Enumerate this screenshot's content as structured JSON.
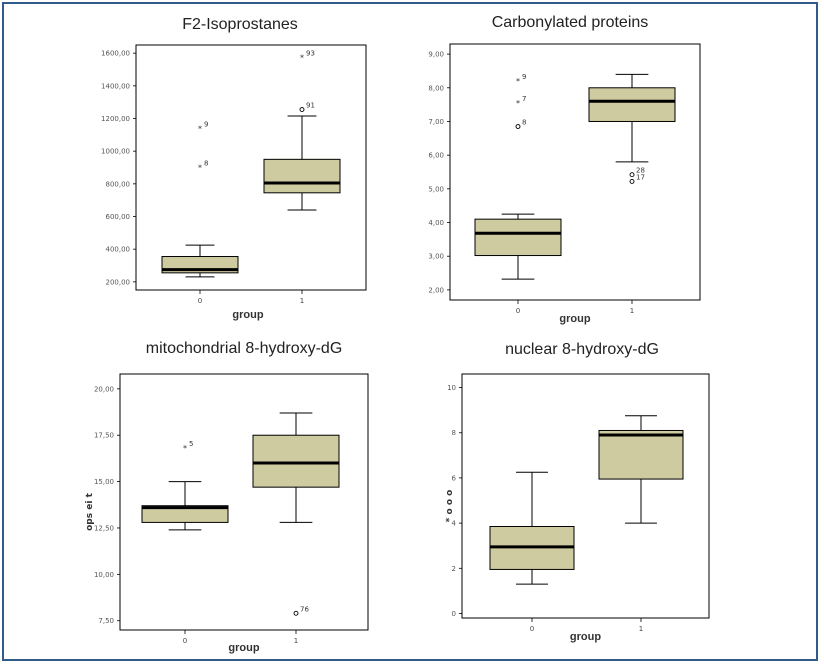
{
  "figure": {
    "border_color": "#2f5c8a",
    "box_fill": "#cfcba0",
    "median_color": "#000000"
  },
  "chart_data": [
    {
      "type": "box",
      "title": "F2-Isoprostanes",
      "xlabel": "group",
      "ylabel": "",
      "categories": [
        "0",
        "1"
      ],
      "ylim": [
        150,
        1650
      ],
      "yticks": [
        200,
        400,
        600,
        800,
        1000,
        1200,
        1400,
        1600
      ],
      "ytick_labels": [
        "200,00",
        "400,00",
        "600,00",
        "800,00",
        "1000,00",
        "1200,00",
        "1400,00",
        "1600,00"
      ],
      "boxes": [
        {
          "category": "0",
          "whisker_low": 230,
          "q1": 255,
          "median": 275,
          "q3": 355,
          "whisker_high": 425
        },
        {
          "category": "1",
          "whisker_low": 640,
          "q1": 745,
          "median": 805,
          "q3": 950,
          "whisker_high": 1215
        }
      ],
      "outliers": [
        {
          "category": "0",
          "value": 1140,
          "label": "9",
          "marker": "*"
        },
        {
          "category": "0",
          "value": 900,
          "label": "8",
          "marker": "*"
        },
        {
          "category": "1",
          "value": 1575,
          "label": "93",
          "marker": "*"
        },
        {
          "category": "1",
          "value": 1255,
          "label": "91",
          "marker": "o"
        }
      ]
    },
    {
      "type": "box",
      "title": "Carbonylated proteins",
      "xlabel": "group",
      "ylabel": "",
      "categories": [
        "0",
        "1"
      ],
      "ylim": [
        1.7,
        9.3
      ],
      "yticks": [
        2,
        3,
        4,
        5,
        6,
        7,
        8,
        9
      ],
      "ytick_labels": [
        "2,00",
        "3,00",
        "4,00",
        "5,00",
        "6,00",
        "7,00",
        "8,00",
        "9,00"
      ],
      "boxes": [
        {
          "category": "0",
          "whisker_low": 2.32,
          "q1": 3.02,
          "median": 3.68,
          "q3": 4.1,
          "whisker_high": 4.25
        },
        {
          "category": "1",
          "whisker_low": 5.8,
          "q1": 7.0,
          "median": 7.6,
          "q3": 8.0,
          "whisker_high": 8.4
        }
      ],
      "outliers": [
        {
          "category": "0",
          "value": 8.2,
          "label": "9",
          "marker": "*"
        },
        {
          "category": "0",
          "value": 7.55,
          "label": "7",
          "marker": "*"
        },
        {
          "category": "0",
          "value": 6.85,
          "label": "8",
          "marker": "o"
        },
        {
          "category": "1",
          "value": 5.42,
          "label": "28",
          "marker": "o"
        },
        {
          "category": "1",
          "value": 5.22,
          "label": "17",
          "marker": "o"
        }
      ]
    },
    {
      "type": "box",
      "title": "mitochondrial 8-hydroxy-dG",
      "xlabel": "group",
      "ylabel": "ops ei t",
      "categories": [
        "0",
        "1"
      ],
      "ylim": [
        7.0,
        20.8
      ],
      "yticks": [
        7.5,
        10,
        12.5,
        15,
        17.5,
        20
      ],
      "ytick_labels": [
        "7,50",
        "10,00",
        "12,50",
        "15,00",
        "17,50",
        "20,00"
      ],
      "boxes": [
        {
          "category": "0",
          "whisker_low": 12.4,
          "q1": 12.8,
          "median": 13.6,
          "q3": 13.7,
          "whisker_high": 15.0
        },
        {
          "category": "1",
          "whisker_low": 12.8,
          "q1": 14.7,
          "median": 16.0,
          "q3": 17.5,
          "whisker_high": 18.7
        }
      ],
      "outliers": [
        {
          "category": "0",
          "value": 16.8,
          "label": "5",
          "marker": "*"
        },
        {
          "category": "1",
          "value": 7.9,
          "label": "76",
          "marker": "o"
        }
      ]
    },
    {
      "type": "box",
      "title": "nuclear 8-hydroxy-dG",
      "xlabel": "group",
      "ylabel": "* o o o",
      "categories": [
        "0",
        "1"
      ],
      "ylim": [
        -0.2,
        10.6
      ],
      "yticks": [
        0,
        2,
        4,
        6,
        8,
        10
      ],
      "ytick_labels": [
        "0",
        "2",
        "4",
        "6",
        "8",
        "10"
      ],
      "boxes": [
        {
          "category": "0",
          "whisker_low": 1.3,
          "q1": 1.95,
          "median": 2.95,
          "q3": 3.85,
          "whisker_high": 6.25
        },
        {
          "category": "1",
          "whisker_low": 4.0,
          "q1": 5.95,
          "median": 7.9,
          "q3": 8.1,
          "whisker_high": 8.75
        }
      ],
      "outliers": []
    }
  ]
}
